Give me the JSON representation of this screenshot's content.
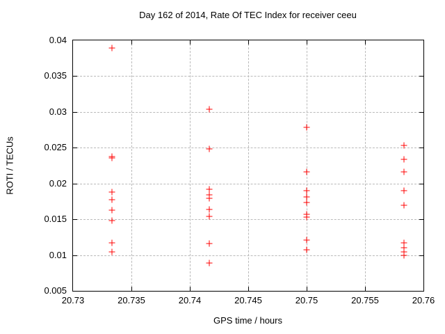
{
  "chart_data": {
    "type": "scatter",
    "title": "Day 162 of 2014, Rate Of TEC Index for receiver ceeu",
    "xlabel": "GPS time / hours",
    "ylabel": "ROTI / TECUs",
    "xlim": [
      20.73,
      20.76
    ],
    "ylim": [
      0.005,
      0.04
    ],
    "grid": true,
    "legend": false,
    "marker": {
      "symbol": "plus",
      "color": "#ff0000"
    },
    "x_ticks": [
      {
        "v": 20.73,
        "label": "20.73"
      },
      {
        "v": 20.735,
        "label": "20.735"
      },
      {
        "v": 20.74,
        "label": "20.74"
      },
      {
        "v": 20.745,
        "label": "20.745"
      },
      {
        "v": 20.75,
        "label": "20.75"
      },
      {
        "v": 20.755,
        "label": "20.755"
      },
      {
        "v": 20.76,
        "label": "20.76"
      }
    ],
    "y_ticks": [
      {
        "v": 0.005,
        "label": "0.005"
      },
      {
        "v": 0.01,
        "label": "0.01"
      },
      {
        "v": 0.015,
        "label": "0.015"
      },
      {
        "v": 0.02,
        "label": "0.02"
      },
      {
        "v": 0.025,
        "label": "0.025"
      },
      {
        "v": 0.03,
        "label": "0.03"
      },
      {
        "v": 0.035,
        "label": "0.035"
      },
      {
        "v": 0.04,
        "label": "0.04"
      }
    ],
    "series": [
      {
        "name": "ROTI",
        "points": [
          [
            20.733333,
            0.0389
          ],
          [
            20.733333,
            0.0238
          ],
          [
            20.733333,
            0.0236
          ],
          [
            20.733333,
            0.0188
          ],
          [
            20.733333,
            0.0177
          ],
          [
            20.733333,
            0.0163
          ],
          [
            20.733333,
            0.0148
          ],
          [
            20.733333,
            0.0117
          ],
          [
            20.733333,
            0.0104
          ],
          [
            20.741667,
            0.0304
          ],
          [
            20.741667,
            0.0248
          ],
          [
            20.741667,
            0.0192
          ],
          [
            20.741667,
            0.0184
          ],
          [
            20.741667,
            0.0179
          ],
          [
            20.741667,
            0.0164
          ],
          [
            20.741667,
            0.0154
          ],
          [
            20.741667,
            0.0116
          ],
          [
            20.741667,
            0.0089
          ],
          [
            20.75,
            0.0278
          ],
          [
            20.75,
            0.0216
          ],
          [
            20.75,
            0.019
          ],
          [
            20.75,
            0.0181
          ],
          [
            20.75,
            0.0173
          ],
          [
            20.75,
            0.0157
          ],
          [
            20.75,
            0.0153
          ],
          [
            20.75,
            0.0121
          ],
          [
            20.75,
            0.0107
          ],
          [
            20.758333,
            0.0253
          ],
          [
            20.758333,
            0.0234
          ],
          [
            20.758333,
            0.0216
          ],
          [
            20.758333,
            0.019
          ],
          [
            20.758333,
            0.017
          ],
          [
            20.758333,
            0.0117
          ],
          [
            20.758333,
            0.011
          ],
          [
            20.758333,
            0.0104
          ],
          [
            20.758333,
            0.01
          ]
        ]
      }
    ]
  }
}
